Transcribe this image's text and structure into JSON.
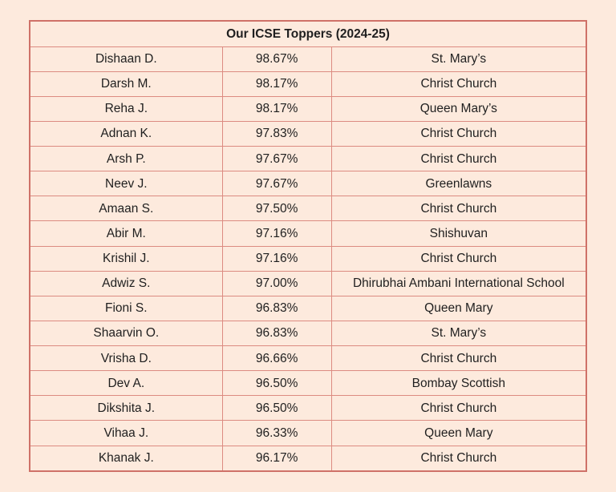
{
  "colors": {
    "background": "#fdeadd",
    "cell_background": "#fdeadd",
    "border": "#dc8b81",
    "outer_border": "#cf7168",
    "text": "#1f1f1f"
  },
  "table": {
    "title": "Our ICSE Toppers (2024-25)",
    "columns": [
      "name",
      "percentage",
      "school"
    ],
    "rows": [
      {
        "name": "Dishaan D.",
        "percentage": "98.67%",
        "school": "St. Mary’s"
      },
      {
        "name": "Darsh M.",
        "percentage": "98.17%",
        "school": "Christ Church"
      },
      {
        "name": "Reha J.",
        "percentage": "98.17%",
        "school": "Queen Mary’s"
      },
      {
        "name": "Adnan K.",
        "percentage": "97.83%",
        "school": "Christ Church"
      },
      {
        "name": "Arsh P.",
        "percentage": "97.67%",
        "school": "Christ Church"
      },
      {
        "name": "Neev J.",
        "percentage": "97.67%",
        "school": "Greenlawns"
      },
      {
        "name": "Amaan S.",
        "percentage": "97.50%",
        "school": "Christ Church"
      },
      {
        "name": "Abir M.",
        "percentage": "97.16%",
        "school": "Shishuvan"
      },
      {
        "name": "Krishil J.",
        "percentage": "97.16%",
        "school": "Christ Church"
      },
      {
        "name": "Adwiz S.",
        "percentage": "97.00%",
        "school": "Dhirubhai Ambani International School"
      },
      {
        "name": "Fioni S.",
        "percentage": "96.83%",
        "school": "Queen Mary"
      },
      {
        "name": "Shaarvin O.",
        "percentage": "96.83%",
        "school": "St. Mary’s"
      },
      {
        "name": "Vrisha D.",
        "percentage": "96.66%",
        "school": "Christ Church"
      },
      {
        "name": "Dev A.",
        "percentage": "96.50%",
        "school": "Bombay Scottish"
      },
      {
        "name": "Dikshita J.",
        "percentage": "96.50%",
        "school": "Christ Church"
      },
      {
        "name": "Vihaa J.",
        "percentage": "96.33%",
        "school": "Queen Mary"
      },
      {
        "name": "Khanak J.",
        "percentage": "96.17%",
        "school": "Christ Church"
      }
    ]
  }
}
